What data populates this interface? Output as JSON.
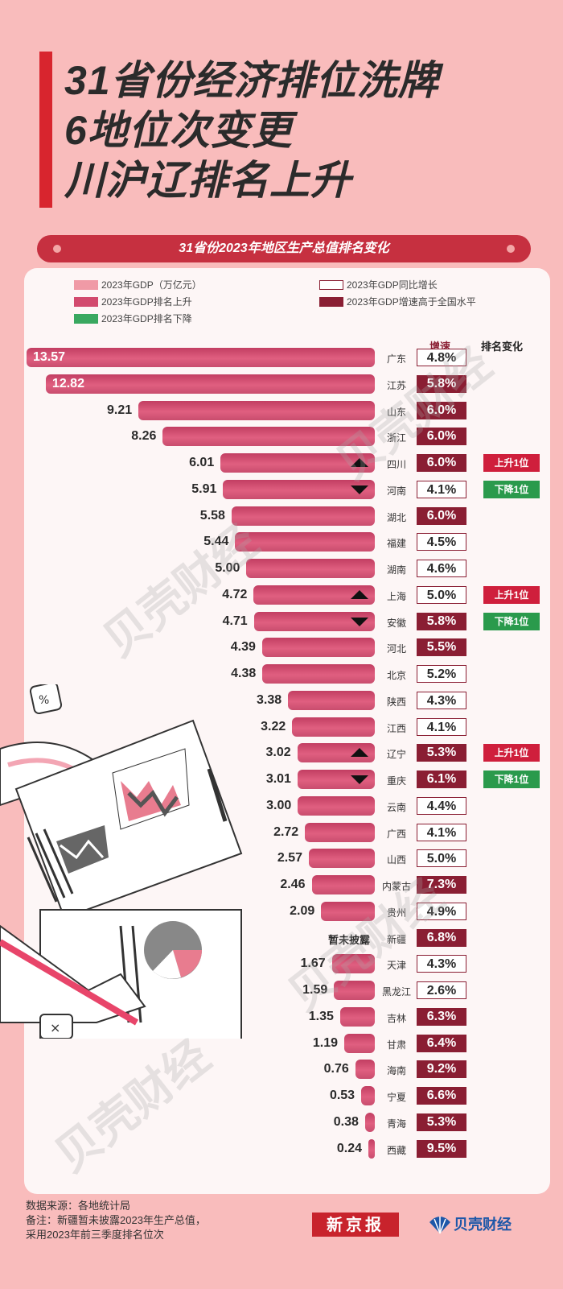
{
  "title_lines": [
    "31省份经济排位洗牌",
    "6地位次变更",
    "川沪辽排名上升"
  ],
  "subtitle": "31省份2023年地区生产总值排名变化",
  "legend": {
    "gdp": "2023年GDP（万亿元）",
    "rank_up": "2023年GDP排名上升",
    "rank_down": "2023年GDP排名下降",
    "growth": "2023年GDP同比增长",
    "growth_above": "2023年GDP增速高于全国水平"
  },
  "headers": {
    "growth": "增速",
    "change": "排名变化"
  },
  "colors": {
    "bar": "#d24a6e",
    "high_growth": "#8a1e33",
    "up": "#cf1f3c",
    "down": "#2a9a4c",
    "accent": "#d8252e"
  },
  "undisclosed_label": "暂未披露",
  "watermark_text": "贝壳财经",
  "chart_data": {
    "type": "bar",
    "title": "31省份2023年地区生产总值排名变化",
    "unit": "万亿元",
    "rows": [
      {
        "province": "广东",
        "gdp": 13.57,
        "gdp_label": "13.57",
        "growth": "4.8%",
        "above": false,
        "change": null
      },
      {
        "province": "江苏",
        "gdp": 12.82,
        "gdp_label": "12.82",
        "growth": "5.8%",
        "above": true,
        "change": null
      },
      {
        "province": "山东",
        "gdp": 9.21,
        "gdp_label": "9.21",
        "growth": "6.0%",
        "above": true,
        "change": null
      },
      {
        "province": "浙江",
        "gdp": 8.26,
        "gdp_label": "8.26",
        "growth": "6.0%",
        "above": true,
        "change": null
      },
      {
        "province": "四川",
        "gdp": 6.01,
        "gdp_label": "6.01",
        "growth": "6.0%",
        "above": true,
        "change": "up",
        "change_label": "上升1位"
      },
      {
        "province": "河南",
        "gdp": 5.91,
        "gdp_label": "5.91",
        "growth": "4.1%",
        "above": false,
        "change": "down",
        "change_label": "下降1位"
      },
      {
        "province": "湖北",
        "gdp": 5.58,
        "gdp_label": "5.58",
        "growth": "6.0%",
        "above": true,
        "change": null
      },
      {
        "province": "福建",
        "gdp": 5.44,
        "gdp_label": "5.44",
        "growth": "4.5%",
        "above": false,
        "change": null
      },
      {
        "province": "湖南",
        "gdp": 5.0,
        "gdp_label": "5.00",
        "growth": "4.6%",
        "above": false,
        "change": null
      },
      {
        "province": "上海",
        "gdp": 4.72,
        "gdp_label": "4.72",
        "growth": "5.0%",
        "above": false,
        "change": "up",
        "change_label": "上升1位"
      },
      {
        "province": "安徽",
        "gdp": 4.71,
        "gdp_label": "4.71",
        "growth": "5.8%",
        "above": true,
        "change": "down",
        "change_label": "下降1位"
      },
      {
        "province": "河北",
        "gdp": 4.39,
        "gdp_label": "4.39",
        "growth": "5.5%",
        "above": true,
        "change": null
      },
      {
        "province": "北京",
        "gdp": 4.38,
        "gdp_label": "4.38",
        "growth": "5.2%",
        "above": false,
        "change": null
      },
      {
        "province": "陕西",
        "gdp": 3.38,
        "gdp_label": "3.38",
        "growth": "4.3%",
        "above": false,
        "change": null
      },
      {
        "province": "江西",
        "gdp": 3.22,
        "gdp_label": "3.22",
        "growth": "4.1%",
        "above": false,
        "change": null
      },
      {
        "province": "辽宁",
        "gdp": 3.02,
        "gdp_label": "3.02",
        "growth": "5.3%",
        "above": true,
        "change": "up",
        "change_label": "上升1位"
      },
      {
        "province": "重庆",
        "gdp": 3.01,
        "gdp_label": "3.01",
        "growth": "6.1%",
        "above": true,
        "change": "down",
        "change_label": "下降1位"
      },
      {
        "province": "云南",
        "gdp": 3.0,
        "gdp_label": "3.00",
        "growth": "4.4%",
        "above": false,
        "change": null
      },
      {
        "province": "广西",
        "gdp": 2.72,
        "gdp_label": "2.72",
        "growth": "4.1%",
        "above": false,
        "change": null
      },
      {
        "province": "山西",
        "gdp": 2.57,
        "gdp_label": "2.57",
        "growth": "5.0%",
        "above": false,
        "change": null
      },
      {
        "province": "内蒙古",
        "gdp": 2.46,
        "gdp_label": "2.46",
        "growth": "7.3%",
        "above": true,
        "change": null
      },
      {
        "province": "贵州",
        "gdp": 2.09,
        "gdp_label": "2.09",
        "growth": "4.9%",
        "above": false,
        "change": null
      },
      {
        "province": "新疆",
        "gdp": null,
        "gdp_label": "暂未披露",
        "growth": "6.8%",
        "above": true,
        "change": null
      },
      {
        "province": "天津",
        "gdp": 1.67,
        "gdp_label": "1.67",
        "growth": "4.3%",
        "above": false,
        "change": null
      },
      {
        "province": "黑龙江",
        "gdp": 1.59,
        "gdp_label": "1.59",
        "growth": "2.6%",
        "above": false,
        "change": null
      },
      {
        "province": "吉林",
        "gdp": 1.35,
        "gdp_label": "1.35",
        "growth": "6.3%",
        "above": true,
        "change": null
      },
      {
        "province": "甘肃",
        "gdp": 1.19,
        "gdp_label": "1.19",
        "growth": "6.4%",
        "above": true,
        "change": null
      },
      {
        "province": "海南",
        "gdp": 0.76,
        "gdp_label": "0.76",
        "growth": "9.2%",
        "above": true,
        "change": null
      },
      {
        "province": "宁夏",
        "gdp": 0.53,
        "gdp_label": "0.53",
        "growth": "6.6%",
        "above": true,
        "change": null
      },
      {
        "province": "青海",
        "gdp": 0.38,
        "gdp_label": "0.38",
        "growth": "5.3%",
        "above": true,
        "change": null
      },
      {
        "province": "西藏",
        "gdp": 0.24,
        "gdp_label": "0.24",
        "growth": "9.5%",
        "above": true,
        "change": null
      }
    ]
  },
  "footer": {
    "source": "数据来源：各地统计局",
    "note1": "备注：新疆暂未披露2023年生产总值，",
    "note2": "采用2023年前三季度排名位次",
    "logo_xjb": "新京报",
    "logo_bk": "贝壳财经"
  }
}
